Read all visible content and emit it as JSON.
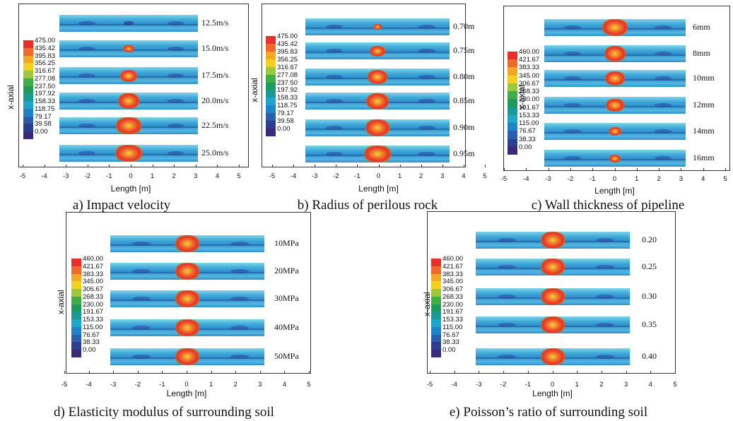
{
  "colorbar_colors": [
    "#e8302b",
    "#ef6a2a",
    "#f5a623",
    "#f2d21f",
    "#9cc93a",
    "#3fae47",
    "#1f9a5a",
    "#1a9a94",
    "#1fa5c9",
    "#1f83c9",
    "#2a5fae",
    "#2c3f8f",
    "#3a2a78"
  ],
  "x_ticks": [
    "-5",
    "-4",
    "-3",
    "-2",
    "-1",
    "0",
    "1",
    "2",
    "3",
    "4",
    "5"
  ],
  "x_label": "Length [m]",
  "y_label": "x-axial",
  "panels": [
    {
      "caption": "a) Impact velocity",
      "legend_values": [
        "475.00",
        "435.42",
        "395.83",
        "356.25",
        "316.67",
        "277.08",
        "237.50",
        "197.92",
        "158.33",
        "118.75",
        "79.17",
        "39.58",
        "0.00"
      ],
      "rows": [
        "12.5m/s",
        "15.0m/s",
        "17.5m/s",
        "20.0m/s",
        "22.5m/s",
        "25.0m/s"
      ]
    },
    {
      "caption": "b) Radius of perilous rock",
      "legend_values": [
        "475.00",
        "435.42",
        "395.83",
        "356.25",
        "316.67",
        "277.08",
        "237.50",
        "197.92",
        "158.33",
        "118.75",
        "79.17",
        "39.58",
        "0.00"
      ],
      "rows": [
        "0.70m",
        "0.75m",
        "0.80m",
        "0.85m",
        "0.90m",
        "0.95m"
      ]
    },
    {
      "caption": "c) Wall thickness of pipeline",
      "legend_values": [
        "460.00",
        "421.67",
        "383.33",
        "345.00",
        "306.67",
        "268.33",
        "230.00",
        "191.67",
        "153.33",
        "115.00",
        "76.67",
        "38.33",
        "0.00"
      ],
      "rows": [
        "6mm",
        "8mm",
        "10mm",
        "12mm",
        "14mm",
        "16mm"
      ]
    },
    {
      "caption": "d) Elasticity modulus of surrounding soil",
      "legend_values": [
        "460.00",
        "421.67",
        "383.33",
        "345.00",
        "306.67",
        "268.33",
        "230.00",
        "191.67",
        "153.33",
        "115.00",
        "76.67",
        "38.33",
        "0.00"
      ],
      "rows": [
        "10MPa",
        "20MPa",
        "30MPa",
        "40MPa",
        "50MPa"
      ]
    },
    {
      "caption": "e) Poisson’s ratio of surrounding soil",
      "legend_values": [
        "460.00",
        "421.67",
        "383.33",
        "345.00",
        "306.67",
        "268.33",
        "230.00",
        "191.67",
        "153.33",
        "115.00",
        "76.67",
        "38.33",
        "0.00"
      ],
      "rows": [
        "0.20",
        "0.25",
        "0.30",
        "0.35",
        "0.40"
      ]
    }
  ]
}
